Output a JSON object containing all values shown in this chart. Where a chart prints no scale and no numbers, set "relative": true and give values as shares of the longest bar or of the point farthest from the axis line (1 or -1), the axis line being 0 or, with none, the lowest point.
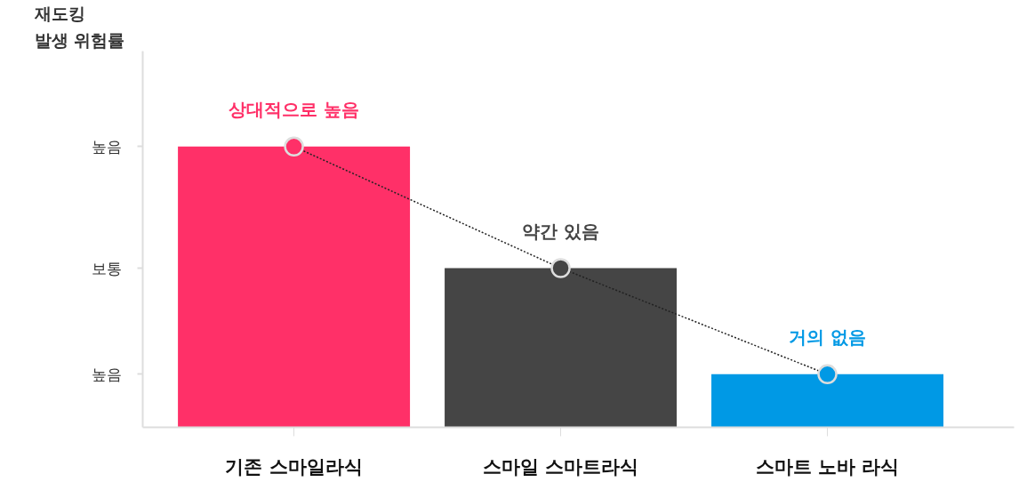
{
  "chart_data": {
    "type": "bar",
    "title": "재도킹\n발생 위험률",
    "relative": true,
    "categories": [
      "기존 스마일라식",
      "스마일 스마트라식",
      "스마트 노바 라식"
    ],
    "series": [
      {
        "colors": [
          "#ff3068",
          "#454545",
          "#0099e5"
        ],
        "values": [
          1,
          0.567,
          0.189
        ]
      },
      {
        "type": "line",
        "color": "#222222",
        "values": [
          1,
          0.567,
          0.189
        ],
        "marker": "circle",
        "line_style": "dotted"
      }
    ],
    "annotations": [
      {
        "text": "상대적으로 높음",
        "x": "기존 스마일라식",
        "y": 1
      },
      {
        "text": "약간 있음",
        "x": "스마일 스마트라식",
        "y": 0.567
      },
      {
        "text": "거의 없음",
        "x": "스마트 노바 라식",
        "y": 0.189
      },
      "높음",
      "보통",
      "높음"
    ],
    "grid": false
  }
}
